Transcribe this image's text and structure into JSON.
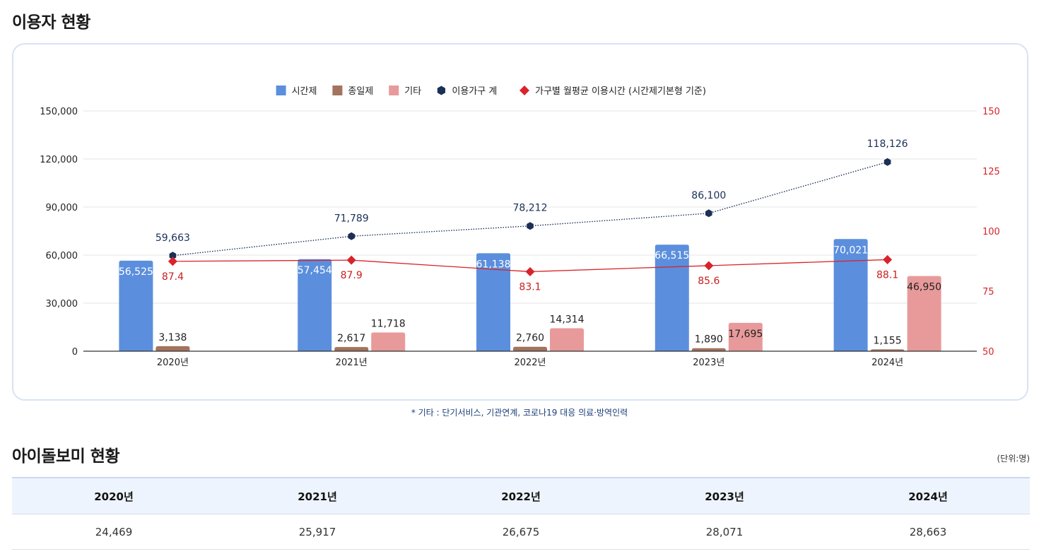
{
  "sections": {
    "usage_title": "이용자 현황",
    "idol_title": "아이돌보미 현황",
    "footnote": "* 기타 : 단기서비스, 기관연계, 코로나19 대응 의료·방역인력",
    "unit": "(단위:명)"
  },
  "chart_data": {
    "type": "bar",
    "categories": [
      "2020년",
      "2021년",
      "2022년",
      "2023년",
      "2024년"
    ],
    "series": [
      {
        "name": "시간제",
        "kind": "bar",
        "axis": "left",
        "color": "#5b8fdd",
        "label_color": "#ffffff",
        "values": [
          56525,
          57454,
          61138,
          66515,
          70021
        ]
      },
      {
        "name": "종일제",
        "kind": "bar",
        "axis": "left",
        "color": "#a3735e",
        "label_color": "#222222",
        "values": [
          3138,
          2617,
          2760,
          1890,
          1155
        ]
      },
      {
        "name": "기타",
        "kind": "bar",
        "axis": "left",
        "color": "#e89a9a",
        "label_color": "#222222",
        "values": [
          0,
          11718,
          14314,
          17695,
          46950
        ]
      },
      {
        "name": "이용가구 계",
        "kind": "line",
        "axis": "left",
        "style": "dotted",
        "marker": "hexagon",
        "color": "#1b2f57",
        "values": [
          59663,
          71789,
          78212,
          86100,
          118126
        ]
      },
      {
        "name": "가구별 월평균 이용시간 (시간제기본형 기준)",
        "kind": "line",
        "axis": "right",
        "style": "solid",
        "marker": "diamond",
        "color": "#d9232a",
        "values": [
          87.4,
          87.9,
          83.1,
          85.6,
          88.1
        ]
      }
    ],
    "y_left": {
      "min": 0,
      "max": 150000,
      "ticks": [
        "0",
        "30,000",
        "60,000",
        "90,000",
        "120,000",
        "150,000"
      ]
    },
    "y_right": {
      "min": 50,
      "max": 150,
      "ticks": [
        "50",
        "75",
        "100",
        "125",
        "150"
      ],
      "color": "#d9232a"
    },
    "grid": true,
    "legend": "top-center"
  },
  "table": {
    "headers": [
      "2020년",
      "2021년",
      "2022년",
      "2023년",
      "2024년"
    ],
    "rows": [
      [
        "24,469",
        "25,917",
        "26,675",
        "28,071",
        "28,663"
      ]
    ]
  }
}
